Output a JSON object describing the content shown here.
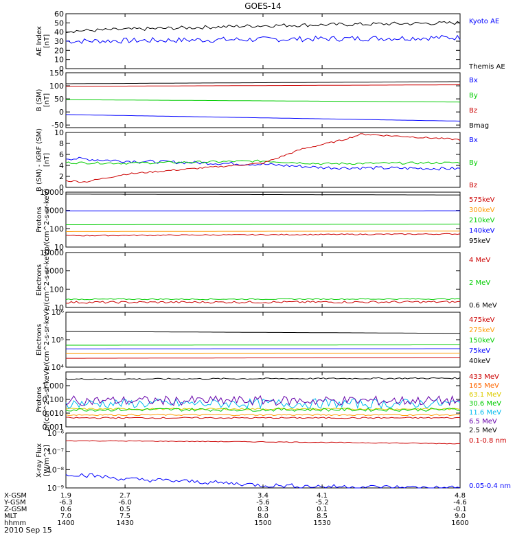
{
  "figure": {
    "title": "GOES-14",
    "date": "2010 Sep 15",
    "xaxis": {
      "ticks": [
        1400,
        1430,
        1500,
        1530,
        1600
      ],
      "rows": [
        {
          "label": "X-GSM",
          "values": [
            "1.9",
            "2.7",
            "3.4",
            "4.1",
            "4.8"
          ]
        },
        {
          "label": "Y-GSM",
          "values": [
            "-6.3",
            "-6.0",
            "-5.6",
            "-5.2",
            "-4.6"
          ]
        },
        {
          "label": "Z-GSM",
          "values": [
            "0.6",
            "0.5",
            "0.3",
            "0.1",
            "-0.1"
          ]
        },
        {
          "label": "MLT",
          "values": [
            "7.0",
            "7.5",
            "8.0",
            "8.5",
            "9.0"
          ]
        },
        {
          "label": "hhmm",
          "values": [
            "1400",
            "1430",
            "1500",
            "1530",
            "1600"
          ]
        }
      ]
    }
  },
  "chart_data": [
    {
      "type": "line",
      "ylabel": [
        "AE Index",
        "[nT]"
      ],
      "ylim": [
        0,
        60
      ],
      "yticks": [
        {
          "v": 0,
          "t": "0"
        },
        {
          "v": 10,
          "t": "10"
        },
        {
          "v": 20,
          "t": "20"
        },
        {
          "v": 30,
          "t": "30"
        },
        {
          "v": 40,
          "t": "40"
        },
        {
          "v": 50,
          "t": "50"
        },
        {
          "v": 60,
          "t": "60"
        }
      ],
      "series": [
        {
          "name": "Kyoto AE",
          "color": "#0000ff",
          "legend_color": "#0000ff",
          "x": [
            1400,
            1600
          ],
          "y": [
            30,
            34
          ],
          "noise": 3
        },
        {
          "name": "Themis AE",
          "color": "#000000",
          "legend_color": "#000000",
          "x": [
            1400,
            1500,
            1600
          ],
          "y": [
            41,
            47,
            50
          ],
          "noise": 2
        }
      ]
    },
    {
      "type": "line",
      "ylabel": [
        "B (SM)",
        "[nT]"
      ],
      "ylim": [
        -60,
        150
      ],
      "yticks": [
        {
          "v": -50,
          "t": "-50"
        },
        {
          "v": 0,
          "t": "0"
        },
        {
          "v": 50,
          "t": "50"
        },
        {
          "v": 100,
          "t": "100"
        },
        {
          "v": 150,
          "t": "150"
        }
      ],
      "series": [
        {
          "name": "Bx",
          "color": "#0000ff",
          "legend_color": "#0000ff",
          "x": [
            1400,
            1600
          ],
          "y": [
            -10,
            -35
          ]
        },
        {
          "name": "By",
          "color": "#00cc00",
          "legend_color": "#00cc00",
          "x": [
            1400,
            1600
          ],
          "y": [
            47,
            38
          ]
        },
        {
          "name": "Bz",
          "color": "#cc0000",
          "legend_color": "#cc0000",
          "x": [
            1400,
            1600
          ],
          "y": [
            98,
            104
          ]
        },
        {
          "name": "Bmag",
          "color": "#000000",
          "legend_color": "#000000",
          "x": [
            1400,
            1600
          ],
          "y": [
            108,
            116
          ]
        }
      ]
    },
    {
      "type": "line",
      "ylabel": [
        "B (SM) - IGRF (SM)",
        "[nT]"
      ],
      "ylim": [
        0,
        10
      ],
      "yticks": [
        {
          "v": 0,
          "t": "0"
        },
        {
          "v": 2,
          "t": "2"
        },
        {
          "v": 4,
          "t": "4"
        },
        {
          "v": 6,
          "t": "6"
        },
        {
          "v": 8,
          "t": "8"
        },
        {
          "v": 10,
          "t": "10"
        }
      ],
      "series": [
        {
          "name": "Bx",
          "color": "#0000ff",
          "legend_color": "#0000ff",
          "x": [
            1400,
            1430,
            1500,
            1530,
            1600
          ],
          "y": [
            5.3,
            4.8,
            4.2,
            3.6,
            3.4
          ],
          "noise": 0.3
        },
        {
          "name": "By",
          "color": "#00cc00",
          "legend_color": "#00cc00",
          "x": [
            1400,
            1430,
            1500,
            1530,
            1600
          ],
          "y": [
            4.5,
            4.4,
            4.8,
            4.3,
            4.5
          ],
          "noise": 0.2
        },
        {
          "name": "Bz",
          "color": "#cc0000",
          "legend_color": "#cc0000",
          "x": [
            1400,
            1410,
            1430,
            1450,
            1500,
            1520,
            1540,
            1550,
            1600
          ],
          "y": [
            1.2,
            1.0,
            2.4,
            3.0,
            4.4,
            7.0,
            8.6,
            9.7,
            8.7
          ],
          "noise": 0.15
        }
      ]
    },
    {
      "type": "line",
      "ylabel": [
        "Protons",
        "p/(cm^2-s-sr-keV)"
      ],
      "log": true,
      "ylim": [
        10,
        10000
      ],
      "yticks": [
        {
          "v": 10,
          "t": "10"
        },
        {
          "v": 100,
          "t": "100"
        },
        {
          "v": 1000,
          "t": "1000"
        },
        {
          "v": 10000,
          "t": "10000"
        }
      ],
      "series": [
        {
          "name": "575keV",
          "color": "#cc0000",
          "legend_color": "#cc0000",
          "x": [
            1400,
            1600
          ],
          "y": [
            42,
            52
          ],
          "noise": 0.03
        },
        {
          "name": "300keV",
          "color": "#ff9900",
          "legend_color": "#ff9900",
          "x": [
            1400,
            1600
          ],
          "y": [
            70,
            75
          ]
        },
        {
          "name": "210keV",
          "color": "#00cc00",
          "legend_color": "#00cc00",
          "x": [
            1400,
            1600
          ],
          "y": [
            165,
            180
          ]
        },
        {
          "name": "140keV",
          "color": "#0000ff",
          "legend_color": "#0000ff",
          "x": [
            1400,
            1600
          ],
          "y": [
            950,
            960
          ]
        },
        {
          "name": "95keV",
          "color": "#000000",
          "legend_color": "#000000",
          "x": [
            1400,
            1600
          ],
          "y": [
            7800,
            7000
          ]
        }
      ]
    },
    {
      "type": "line",
      "ylabel": [
        "Electrons",
        "e/(cm^2-s-sr-keV)"
      ],
      "log": true,
      "ylim": [
        10,
        10000
      ],
      "yticks": [
        {
          "v": 10,
          "t": "10"
        },
        {
          "v": 100,
          "t": "100"
        },
        {
          "v": 1000,
          "t": "1000"
        },
        {
          "v": 10000,
          "t": "10000"
        }
      ],
      "series": [
        {
          "name": "4 MeV",
          "color": "#cc0000",
          "legend_color": "#cc0000",
          "x": [
            1400,
            1600
          ],
          "y": [
            19,
            20
          ],
          "noise": 0.06
        },
        {
          "name": "2 MeV",
          "color": "#00cc00",
          "legend_color": "#00cc00",
          "x": [
            1400,
            1600
          ],
          "y": [
            28,
            29
          ],
          "noise": 0.03
        },
        {
          "name": "0.6 MeV",
          "color": "#000000",
          "legend_color": "#000000",
          "x": [
            1400,
            1600
          ],
          "y": [
            10000,
            10000
          ]
        }
      ]
    },
    {
      "type": "line",
      "ylabel": [
        "Electrons",
        "e/(cm^2-s-sr-keV)"
      ],
      "log": true,
      "ylim": [
        10000,
        1000000
      ],
      "yticks": [
        {
          "v": 10000,
          "t": "10⁴"
        },
        {
          "v": 100000,
          "t": "10⁵"
        },
        {
          "v": 1000000,
          "t": "10⁶"
        }
      ],
      "series": [
        {
          "name": "475keV",
          "color": "#cc0000",
          "legend_color": "#cc0000",
          "x": [
            1400,
            1600
          ],
          "y": [
            21000,
            22500
          ]
        },
        {
          "name": "275keV",
          "color": "#ff9900",
          "legend_color": "#ff9900",
          "x": [
            1400,
            1600
          ],
          "y": [
            31000,
            32000
          ]
        },
        {
          "name": "150keV",
          "color": "#00cc00",
          "legend_color": "#00cc00",
          "x": [
            1400,
            1600
          ],
          "y": [
            63000,
            65000
          ]
        },
        {
          "name": "75keV",
          "color": "#0000ff",
          "legend_color": "#0000ff",
          "x": [
            1400,
            1600
          ],
          "y": [
            46000,
            47000
          ]
        },
        {
          "name": "40keV",
          "color": "#000000",
          "legend_color": "#000000",
          "x": [
            1400,
            1600
          ],
          "y": [
            200000,
            170000
          ]
        }
      ]
    },
    {
      "type": "line",
      "ylabel": [
        "Protons",
        "p/(cm^2-s-sr-keV)"
      ],
      "log": true,
      "ylim": [
        0.001,
        10
      ],
      "yticks": [
        {
          "v": 0.001,
          "t": "0.001"
        },
        {
          "v": 0.01,
          "t": "0.010"
        },
        {
          "v": 0.1,
          "t": "0.100"
        },
        {
          "v": 1,
          "t": "1.000"
        }
      ],
      "series": [
        {
          "name": "433 MeV",
          "color": "#000000",
          "legend_color": "#cc0000",
          "x": [
            1400,
            1600
          ],
          "y": [
            3.0,
            3.5
          ],
          "noise": 0.05
        },
        {
          "name": "165 MeV",
          "color": "#ff9900",
          "legend_color": "#ff6600",
          "x": [
            1400,
            1600
          ],
          "y": [
            0.0075,
            0.0075
          ],
          "noise": 0.06
        },
        {
          "name": "63.1 MeV",
          "color": "#ddcc00",
          "legend_color": "#ddcc00",
          "x": [
            1400,
            1600
          ],
          "y": [
            0.02,
            0.02
          ],
          "noise": 0.06
        },
        {
          "name": "30.6 MeV",
          "color": "#00cc00",
          "legend_color": "#00cc00",
          "x": [
            1400,
            1600
          ],
          "y": [
            0.018,
            0.018
          ],
          "noise": 0.12
        },
        {
          "name": "11.6 MeV",
          "color": "#00bbee",
          "legend_color": "#00bbee",
          "x": [
            1400,
            1600
          ],
          "y": [
            0.05,
            0.05
          ],
          "noise": 0.35
        },
        {
          "name": "6.5 MeV",
          "color": "#6600aa",
          "legend_color": "#6600aa",
          "x": [
            1400,
            1600
          ],
          "y": [
            0.08,
            0.08
          ],
          "noise": 0.35
        },
        {
          "name": "2.5 MeV",
          "color": "#cc0000",
          "legend_color": "#000000",
          "x": [
            1400,
            1600
          ],
          "y": [
            0.0045,
            0.0045
          ],
          "noise": 0.05
        }
      ]
    },
    {
      "type": "line",
      "ylabel": [
        "X-ray Flux",
        "[W/m^2]"
      ],
      "log": true,
      "ylim": [
        1e-09,
        1e-06
      ],
      "yticks": [
        {
          "v": 1e-09,
          "t": "10⁻⁹"
        },
        {
          "v": 1e-08,
          "t": "10⁻⁸"
        },
        {
          "v": 1e-07,
          "t": "10⁻⁷"
        },
        {
          "v": 1e-06,
          "t": "10⁻⁶"
        }
      ],
      "series": [
        {
          "name": "0.1-0.8 nm",
          "color": "#cc0000",
          "legend_color": "#cc0000",
          "x": [
            1400,
            1500,
            1600
          ],
          "y": [
            3.8e-07,
            3.3e-07,
            2.6e-07
          ],
          "noise": 0.02
        },
        {
          "name": "0.05-0.4 nm",
          "color": "#0000ff",
          "legend_color": "#0000ff",
          "x": [
            1400,
            1430,
            1500,
            1530,
            1600
          ],
          "y": [
            6e-09,
            3e-09,
            1.4e-09,
            1.2e-09,
            1e-09
          ],
          "noise": 0.12
        }
      ]
    }
  ]
}
